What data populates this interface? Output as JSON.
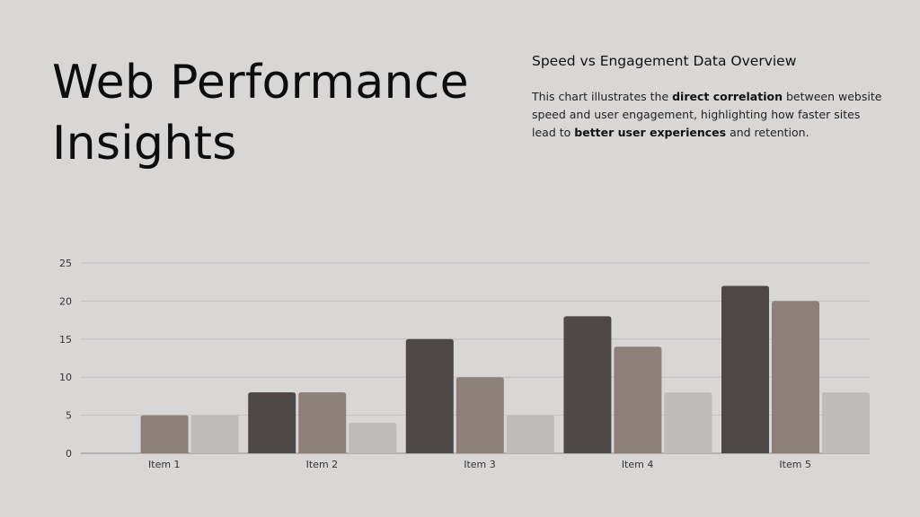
{
  "header": {
    "title_line1": "Web Performance",
    "title_line2": "Insights",
    "subtitle": "Speed vs Engagement Data Overview",
    "description": {
      "part1": "This chart illustrates the ",
      "bold1": "direct correlation",
      "part2": " between website speed and user engagement, highlighting how faster sites lead to ",
      "bold2": "better user experiences",
      "part3": " and retention."
    }
  },
  "chart_data": {
    "type": "bar",
    "categories": [
      "Item 1",
      "Item 2",
      "Item 3",
      "Item 4",
      "Item 5"
    ],
    "series": [
      {
        "values": [
          0,
          8,
          15,
          18,
          22
        ],
        "color": "#4e4747"
      },
      {
        "values": [
          5,
          8,
          10,
          14,
          20
        ],
        "color": "#8c8077"
      },
      {
        "values": [
          5,
          4,
          5,
          8,
          8
        ],
        "color": "#bdbcb8"
      }
    ],
    "ylim": [
      0,
      25
    ],
    "yticks": [
      0,
      5,
      10,
      15,
      20,
      25
    ],
    "grid": true,
    "legend": "none",
    "title": "",
    "xlabel": "",
    "ylabel": ""
  }
}
